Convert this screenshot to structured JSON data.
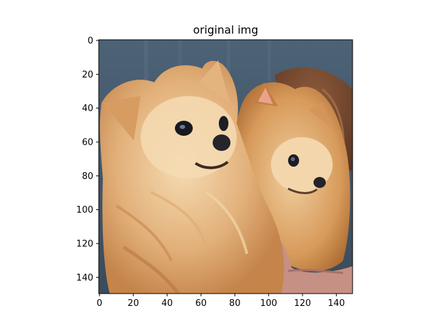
{
  "figure": {
    "title": "original img",
    "image_description_name": "two-pomeranian-dogs-photo"
  },
  "axes": {
    "x_ticks": [
      "0",
      "20",
      "40",
      "60",
      "80",
      "100",
      "120",
      "140"
    ],
    "y_ticks": [
      "0",
      "20",
      "40",
      "60",
      "80",
      "100",
      "120",
      "140"
    ],
    "x_range": [
      0,
      150
    ],
    "y_range": [
      0,
      150
    ],
    "y_inverted": true
  },
  "colors": {
    "background": "#ffffff",
    "axis": "#000000",
    "photo_bg_top": "#4a5f73",
    "photo_bg_bottom": "#3d4e5e",
    "fur_light": "#f2d3a6",
    "fur_mid": "#d9a25e",
    "fur_dark": "#b8743a",
    "hand": "#c98e84"
  }
}
